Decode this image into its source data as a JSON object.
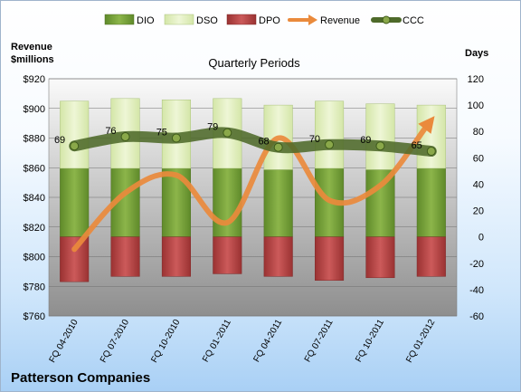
{
  "chart_data": {
    "type": "bar",
    "title": "Quarterly Periods",
    "company": "Patterson Companies",
    "left_axis": {
      "label_line1": "Revenue",
      "label_line2": "$millions",
      "min": 760,
      "max": 920,
      "step": 20,
      "ticks": [
        "$760",
        "$780",
        "$800",
        "$820",
        "$840",
        "$860",
        "$880",
        "$900",
        "$920"
      ]
    },
    "right_axis": {
      "label": "Days",
      "min": -60,
      "max": 120,
      "step": 20,
      "ticks": [
        "-60",
        "-40",
        "-20",
        "0",
        "20",
        "40",
        "60",
        "80",
        "100",
        "120"
      ]
    },
    "categories": [
      "FQ 04-2010",
      "FQ 07-2010",
      "FQ 10-2010",
      "FQ 01-2011",
      "FQ 04-2011",
      "FQ 07-2011",
      "FQ 10-2011",
      "FQ 01-2012"
    ],
    "legend_position": "top",
    "grid": true,
    "series": [
      {
        "name": "DIO",
        "type": "stacked-bar",
        "axis": "right",
        "color": "#7aa23a",
        "values": [
          52,
          52,
          52,
          52,
          51,
          52,
          51,
          52
        ]
      },
      {
        "name": "DSO",
        "type": "stacked-bar",
        "axis": "right",
        "color": "#e6f1c8",
        "values": [
          51,
          53,
          52,
          53,
          49,
          51,
          50,
          48
        ]
      },
      {
        "name": "DPO",
        "type": "stacked-bar-negative",
        "axis": "right",
        "color": "#b84a4a",
        "values": [
          -34,
          -30,
          -30,
          -28,
          -30,
          -33,
          -31,
          -30
        ]
      },
      {
        "name": "Revenue",
        "type": "line",
        "axis": "left",
        "color": "#ea8a3c",
        "values": [
          805,
          843,
          855,
          823,
          880,
          838,
          848,
          892
        ]
      },
      {
        "name": "CCC",
        "type": "line",
        "axis": "right",
        "color": "#4e6a2a",
        "values": [
          69,
          76,
          75,
          79,
          68,
          70,
          69,
          65
        ],
        "labels": [
          "69",
          "76",
          "75",
          "79",
          "68",
          "70",
          "69",
          "65"
        ]
      }
    ]
  }
}
